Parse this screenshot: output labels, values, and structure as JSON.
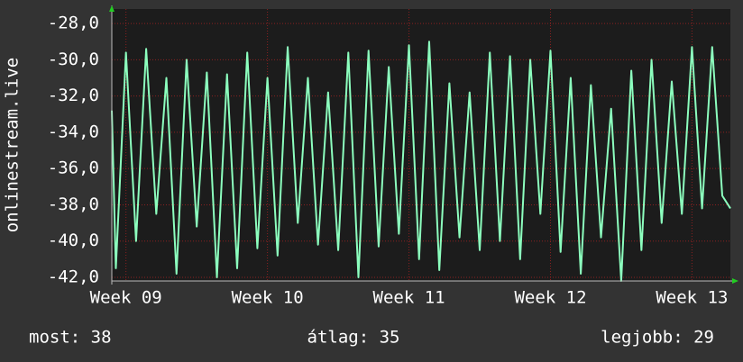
{
  "chart_data": {
    "type": "line",
    "ylabel": "onlinestream.live",
    "x": [
      0.3,
      0.5,
      1,
      1.5,
      2,
      2.5,
      3,
      3.5,
      4,
      4.5,
      5,
      5.5,
      6,
      6.5,
      7,
      7.5,
      8,
      8.5,
      9,
      9.5,
      10,
      10.5,
      11,
      11.5,
      12,
      12.5,
      13,
      13.5,
      14,
      14.5,
      15,
      15.5,
      16,
      16.5,
      17,
      17.5,
      18,
      18.5,
      19,
      19.5,
      20,
      20.5,
      21,
      21.5,
      22,
      22.5,
      23,
      23.5,
      24,
      24.5,
      25,
      25.5,
      26,
      26.5,
      27,
      27.5,
      28,
      28.5,
      29,
      29.5,
      30,
      30.5,
      30.9
    ],
    "series": [
      {
        "color": "#8cffbe",
        "values": [
          -32.8,
          -41.5,
          -29.6,
          -40,
          -29.4,
          -38.5,
          -31,
          -41.8,
          -30,
          -39.2,
          -30.7,
          -42,
          -30.8,
          -41.5,
          -29.6,
          -40.4,
          -31,
          -40.8,
          -29.3,
          -39,
          -31,
          -40.2,
          -31.8,
          -40.5,
          -29.6,
          -42,
          -29.5,
          -40.3,
          -30.4,
          -39.6,
          -29.2,
          -41,
          -29,
          -41.6,
          -31.3,
          -39.8,
          -31.8,
          -40.5,
          -29.6,
          -40,
          -29.8,
          -41,
          -30,
          -38.5,
          -29.5,
          -40.6,
          -31,
          -41.8,
          -31.4,
          -39.8,
          -32.7,
          -42.2,
          -30.6,
          -40.5,
          -30,
          -39,
          -31.2,
          -38.5,
          -29.3,
          -38.2,
          -29.3,
          -37.5,
          -38.2
        ]
      }
    ],
    "xlim": [
      0.3,
      30.9
    ],
    "xticks": [
      {
        "value": 1,
        "label": "Week 09"
      },
      {
        "value": 8,
        "label": "Week 10"
      },
      {
        "value": 15,
        "label": "Week 11"
      },
      {
        "value": 22,
        "label": "Week 12"
      },
      {
        "value": 29,
        "label": "Week 13"
      }
    ],
    "ylim": [
      -42.2,
      -27.2
    ],
    "yticks": [
      {
        "value": -42,
        "label": "-42,0"
      },
      {
        "value": -40,
        "label": "-40,0"
      },
      {
        "value": -38,
        "label": "-38,0"
      },
      {
        "value": -36,
        "label": "-36,0"
      },
      {
        "value": -34,
        "label": "-34,0"
      },
      {
        "value": -32,
        "label": "-32,0"
      },
      {
        "value": -30,
        "label": "-30,0"
      },
      {
        "value": -28,
        "label": "-28,0"
      }
    ],
    "grid": true,
    "annotations": [
      "most: 38",
      "átlag: 35",
      "legjobb: 29"
    ]
  }
}
